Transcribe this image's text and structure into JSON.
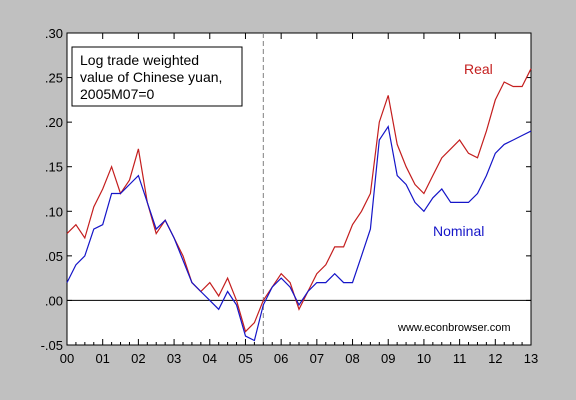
{
  "chart_data": {
    "type": "line",
    "annotation": [
      "Log trade weighted",
      "value of Chinese yuan,",
      "2005M07=0"
    ],
    "watermark": "www.econbrowser.com",
    "x_ticks": [
      "00",
      "01",
      "02",
      "03",
      "04",
      "05",
      "06",
      "07",
      "08",
      "09",
      "10",
      "11",
      "12",
      "13"
    ],
    "x_range": [
      2000,
      2013
    ],
    "y_ticks": [
      ".30",
      ".25",
      ".20",
      ".15",
      ".10",
      ".05",
      ".00",
      "-.05"
    ],
    "y_range": [
      -0.05,
      0.3
    ],
    "reference_line_x": 2005.5,
    "zero_line": true,
    "colors": {
      "real": "#c41e1e",
      "nominal": "#1515c8",
      "background": "#c0c0c0",
      "plot": "#ffffff"
    },
    "series": [
      {
        "name": "Real",
        "x": [
          2000.0,
          2000.25,
          2000.5,
          2000.75,
          2001.0,
          2001.25,
          2001.5,
          2001.75,
          2002.0,
          2002.25,
          2002.5,
          2002.75,
          2003.0,
          2003.25,
          2003.5,
          2003.75,
          2004.0,
          2004.25,
          2004.5,
          2004.75,
          2005.0,
          2005.25,
          2005.5,
          2005.75,
          2006.0,
          2006.25,
          2006.5,
          2006.75,
          2007.0,
          2007.25,
          2007.5,
          2007.75,
          2008.0,
          2008.25,
          2008.5,
          2008.75,
          2009.0,
          2009.25,
          2009.5,
          2009.75,
          2010.0,
          2010.25,
          2010.5,
          2010.75,
          2011.0,
          2011.25,
          2011.5,
          2011.75,
          2012.0,
          2012.25,
          2012.5,
          2012.75,
          2013.0
        ],
        "y": [
          0.075,
          0.085,
          0.07,
          0.105,
          0.125,
          0.15,
          0.12,
          0.135,
          0.17,
          0.11,
          0.075,
          0.09,
          0.07,
          0.05,
          0.02,
          0.01,
          0.02,
          0.005,
          0.025,
          0.0,
          -0.035,
          -0.025,
          0.0,
          0.015,
          0.03,
          0.02,
          -0.01,
          0.01,
          0.03,
          0.04,
          0.06,
          0.06,
          0.085,
          0.1,
          0.12,
          0.2,
          0.23,
          0.175,
          0.15,
          0.13,
          0.12,
          0.14,
          0.16,
          0.17,
          0.18,
          0.165,
          0.16,
          0.19,
          0.225,
          0.245,
          0.24,
          0.24,
          0.26
        ]
      },
      {
        "name": "Nominal",
        "x": [
          2000.0,
          2000.25,
          2000.5,
          2000.75,
          2001.0,
          2001.25,
          2001.5,
          2001.75,
          2002.0,
          2002.25,
          2002.5,
          2002.75,
          2003.0,
          2003.25,
          2003.5,
          2003.75,
          2004.0,
          2004.25,
          2004.5,
          2004.75,
          2005.0,
          2005.25,
          2005.5,
          2005.75,
          2006.0,
          2006.25,
          2006.5,
          2006.75,
          2007.0,
          2007.25,
          2007.5,
          2007.75,
          2008.0,
          2008.25,
          2008.5,
          2008.75,
          2009.0,
          2009.25,
          2009.5,
          2009.75,
          2010.0,
          2010.25,
          2010.5,
          2010.75,
          2011.0,
          2011.25,
          2011.5,
          2011.75,
          2012.0,
          2012.25,
          2012.5,
          2012.75,
          2013.0
        ],
        "y": [
          0.02,
          0.04,
          0.05,
          0.08,
          0.085,
          0.12,
          0.12,
          0.13,
          0.14,
          0.11,
          0.08,
          0.09,
          0.07,
          0.045,
          0.02,
          0.01,
          0.0,
          -0.01,
          0.01,
          -0.005,
          -0.04,
          -0.045,
          -0.005,
          0.015,
          0.025,
          0.015,
          -0.005,
          0.01,
          0.02,
          0.02,
          0.03,
          0.02,
          0.02,
          0.05,
          0.08,
          0.18,
          0.195,
          0.14,
          0.13,
          0.11,
          0.1,
          0.115,
          0.125,
          0.11,
          0.11,
          0.11,
          0.12,
          0.14,
          0.165,
          0.175,
          0.18,
          0.185,
          0.19
        ]
      }
    ]
  }
}
